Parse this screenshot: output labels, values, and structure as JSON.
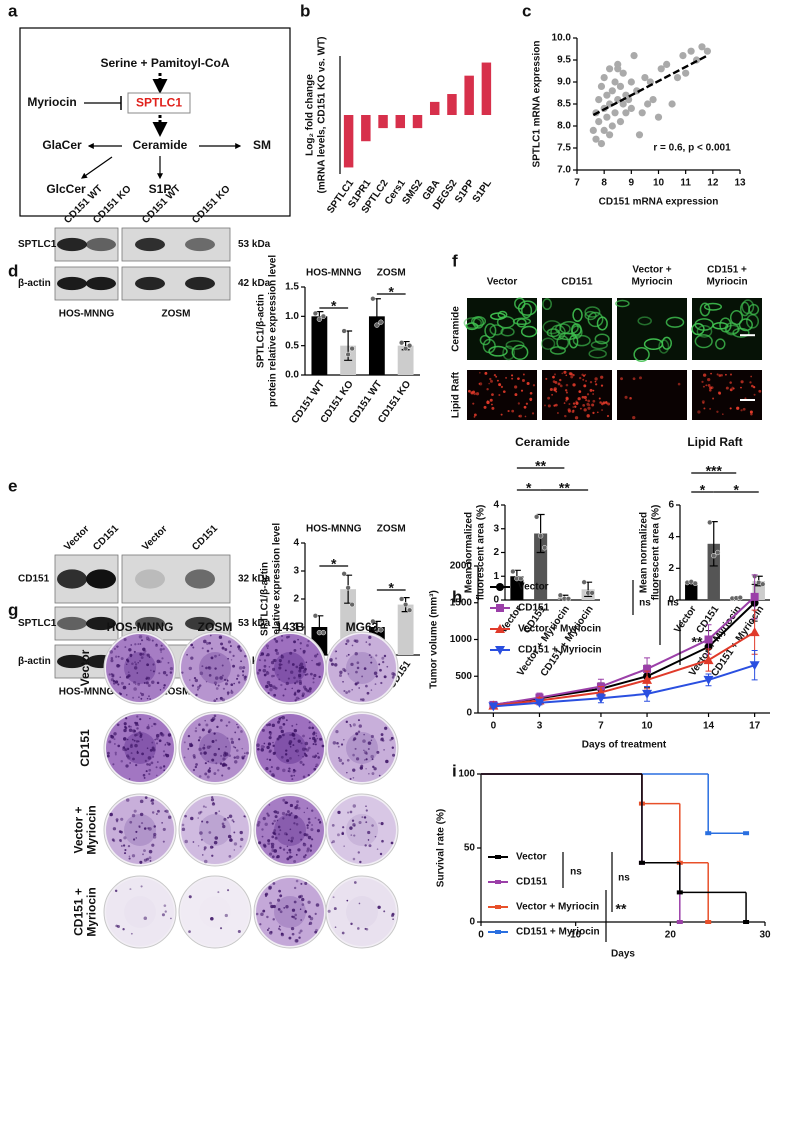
{
  "panel_labels": [
    "a",
    "b",
    "c",
    "d",
    "e",
    "f",
    "g",
    "h",
    "i"
  ],
  "diagram": {
    "nodes": [
      "Serine + Pamitoyl-CoA",
      "SPTLC1",
      "Myriocin",
      "GlaCer",
      "Ceramide",
      "SM",
      "GlcCer",
      "S1P"
    ]
  },
  "blots": [
    {
      "lanes": [
        "CD151 WT",
        "CD151 KO",
        "CD151 WT",
        "CD151 KO"
      ],
      "proteins": [
        "SPTLC1",
        "β-actin"
      ],
      "sizes": [
        "53 kDa",
        "42 kDa"
      ],
      "cell_lines": [
        "HOS-MNNG",
        "ZOSM"
      ]
    },
    {
      "lanes": [
        "Vector",
        "CD151",
        "Vector",
        "CD151"
      ],
      "proteins": [
        "CD151",
        "SPTLC1",
        "β-actin"
      ],
      "sizes": [
        "32 kDa",
        "53 kDa",
        "42 kDa"
      ],
      "cell_lines": [
        "HOS-MNNG",
        "ZOSM"
      ]
    }
  ],
  "micrographs": {
    "columns": [
      [
        "Vector"
      ],
      [
        "CD151"
      ],
      [
        "Vector +",
        "Myriocin"
      ],
      [
        "CD151 +",
        "Myriocin"
      ]
    ],
    "rows": [
      "Ceramide",
      "Lipid Raft"
    ]
  },
  "colony_plates": {
    "columns": [
      "HOS-MNNG",
      "ZOSM",
      "143B",
      "MG63"
    ],
    "rows": [
      [
        "Vector"
      ],
      [
        "CD151"
      ],
      [
        "Vector +",
        "Myriocin"
      ],
      [
        "CD151 +",
        "Myriocin"
      ]
    ]
  },
  "chart_data": [
    {
      "type": "bar",
      "ylabel": [
        "Log₂ fold change",
        "(mRNA levels, CD151 KO vs. WT)"
      ],
      "categories": [
        "SPTLC1",
        "S1PR1",
        "SPTLC2",
        "Cers1",
        "SMS2",
        "GBA",
        "DEGS2",
        "S1PP",
        "S1PL"
      ],
      "values": [
        -4,
        -2,
        -1,
        -1,
        -1,
        1,
        1.6,
        3,
        4
      ],
      "color": "#d7304b",
      "ylim": [
        -4.5,
        4.5
      ]
    },
    {
      "type": "scatter",
      "xlabel": "CD151 mRNA expression",
      "ylabel": "SPTLC1 mRNA expression",
      "annotation": "r = 0.6, p < 0.001",
      "x": [
        7.6,
        7.7,
        7.7,
        7.8,
        7.8,
        7.9,
        7.9,
        8.0,
        8.0,
        8.0,
        8.1,
        8.1,
        8.2,
        8.2,
        8.3,
        8.3,
        8.4,
        8.4,
        8.5,
        8.5,
        8.6,
        8.6,
        8.7,
        8.7,
        8.8,
        8.8,
        8.9,
        9.0,
        9.0,
        9.1,
        9.2,
        9.3,
        9.4,
        9.5,
        9.6,
        9.7,
        9.8,
        10.0,
        10.1,
        10.3,
        10.5,
        10.7,
        10.9,
        11.0,
        11.2,
        11.4,
        11.6,
        11.8,
        8.2,
        8.5
      ],
      "y": [
        7.9,
        8.3,
        7.7,
        8.6,
        8.1,
        8.9,
        7.6,
        8.4,
        9.1,
        7.9,
        8.7,
        8.2,
        9.3,
        8.5,
        8.0,
        8.8,
        9.0,
        8.3,
        8.6,
        9.4,
        8.1,
        8.9,
        8.5,
        9.2,
        8.7,
        8.3,
        8.6,
        9.0,
        8.4,
        9.6,
        8.8,
        7.8,
        8.3,
        9.1,
        8.5,
        9.0,
        8.6,
        8.2,
        9.3,
        9.4,
        8.5,
        9.1,
        9.6,
        9.2,
        9.7,
        9.5,
        9.8,
        9.7,
        7.8,
        9.3
      ],
      "color": "#aaaaaa",
      "fit": {
        "x": [
          7.6,
          11.8
        ],
        "y": [
          8.25,
          9.6
        ],
        "color": "#000000"
      },
      "xlim": [
        7,
        13
      ],
      "xticks": [
        7,
        8,
        9,
        10,
        11,
        12,
        13
      ],
      "ylim": [
        7,
        10
      ],
      "yticks": [
        {
          "value": 7,
          "label": "7.0"
        },
        7.5,
        {
          "value": 8,
          "label": "8.0"
        },
        8.5,
        {
          "value": 9,
          "label": "9.0"
        },
        9.5,
        {
          "value": 10,
          "label": "10.0"
        }
      ]
    },
    {
      "type": "bar",
      "ylabel": [
        "SPTLC1/β-actin",
        "protein relative expression level"
      ],
      "groups": [
        "HOS-MNNG",
        "ZOSM"
      ],
      "categories": [
        "CD151 WT",
        "CD151 KO",
        "CD151 WT",
        "CD151 KO"
      ],
      "values": [
        1,
        0.5,
        1,
        0.5
      ],
      "errors": [
        0.08,
        0.25,
        0.3,
        0.07
      ],
      "points": [
        [
          1.05,
          0.95,
          1.0
        ],
        [
          0.75,
          0.35,
          0.45
        ],
        [
          1.3,
          0.85,
          0.9
        ],
        [
          0.55,
          0.45,
          0.5
        ]
      ],
      "colors": [
        "#000000",
        "#cccccc",
        "#000000",
        "#cccccc"
      ],
      "annotations": [
        "*",
        "*"
      ],
      "ylim": [
        0,
        1.5
      ],
      "yticks": [
        {
          "value": 0,
          "label": "0.0"
        },
        0.5,
        {
          "value": 1,
          "label": "1.0"
        },
        1.5
      ]
    },
    {
      "type": "bar",
      "ylabel": [
        "SPTLC1/β-actin",
        "protein relative expression level"
      ],
      "groups": [
        "HOS-MNNG",
        "ZOSM"
      ],
      "categories": [
        "Vector",
        "CD151",
        "Vector",
        "CD151"
      ],
      "values": [
        1,
        2.35,
        1,
        1.8
      ],
      "errors": [
        0.4,
        0.5,
        0.2,
        0.25
      ],
      "points": [
        [
          1.4,
          0.8,
          0.8
        ],
        [
          2.9,
          2.4,
          1.8
        ],
        [
          1.2,
          0.9,
          0.9
        ],
        [
          2.0,
          1.8,
          1.6
        ]
      ],
      "colors": [
        "#000000",
        "#cccccc",
        "#000000",
        "#cccccc"
      ],
      "annotations": [
        "*",
        "*"
      ],
      "ylim": [
        0,
        4
      ],
      "yticks": [
        0,
        1,
        2,
        3,
        4
      ]
    },
    {
      "type": "bar",
      "title": "Ceramide",
      "ylabel": [
        "Mean normalized",
        "fluorescent area (%)"
      ],
      "categories": [
        "Vector",
        "CD151",
        "Vector + Myriocin",
        "CD151 + Myriocin"
      ],
      "values": [
        1,
        2.8,
        0.1,
        0.45
      ],
      "errors": [
        0.25,
        0.8,
        0.1,
        0.3
      ],
      "points": [
        [
          1.2,
          0.9,
          0.9
        ],
        [
          3.5,
          2.7,
          2.2
        ],
        [
          0.2,
          0.05,
          0.05
        ],
        [
          0.75,
          0.3,
          0.3
        ]
      ],
      "colors": [
        "#000000",
        "#555555",
        "#999999",
        "#cccccc"
      ],
      "annotations": [
        "**",
        "*",
        "**"
      ],
      "ylim": [
        0,
        4
      ],
      "yticks": [
        0,
        1,
        2,
        3,
        4
      ]
    },
    {
      "type": "bar",
      "title": "Lipid Raft",
      "ylabel": [
        "Mean normalized",
        "fluorescent area (%)"
      ],
      "categories": [
        "Vector",
        "CD151",
        "Vector + Myriocin",
        "CD151 + Myriocin"
      ],
      "values": [
        1.1,
        3.55,
        0.12,
        1.2
      ],
      "errors": [
        0.05,
        1.4,
        0.05,
        0.3
      ],
      "points": [
        [
          1.1,
          1.15,
          1.05
        ],
        [
          4.9,
          2.8,
          3.0
        ],
        [
          0.1,
          0.12,
          0.15
        ],
        [
          1.5,
          1.1,
          1.0
        ]
      ],
      "colors": [
        "#000000",
        "#555555",
        "#999999",
        "#cccccc"
      ],
      "annotations": [
        "***",
        "*",
        "*"
      ],
      "ylim": [
        0,
        6
      ],
      "yticks": [
        0,
        2,
        4,
        6
      ]
    },
    {
      "type": "line",
      "xlabel": "Days of treatment",
      "ylabel": "Tumor volume (mm³)",
      "x": [
        0,
        3,
        7,
        10,
        14,
        17
      ],
      "series": [
        {
          "name": "Vector",
          "color": "#000000",
          "marker": "circle",
          "values": [
            110,
            200,
            330,
            500,
            900,
            1500
          ],
          "errors": [
            20,
            40,
            80,
            150,
            220,
            250
          ]
        },
        {
          "name": "CD151",
          "color": "#9b3fa8",
          "marker": "square",
          "values": [
            110,
            210,
            360,
            600,
            1000,
            1580
          ],
          "errors": [
            20,
            60,
            100,
            150,
            200,
            300
          ]
        },
        {
          "name": "Vector + Myriocin",
          "color": "#e03a2a",
          "marker": "triangle",
          "values": [
            100,
            170,
            280,
            450,
            720,
            1100
          ],
          "errors": [
            20,
            40,
            80,
            120,
            150,
            300
          ]
        },
        {
          "name": "CD151 + Myriocin",
          "color": "#2a4fe0",
          "marker": "triangle-down",
          "values": [
            90,
            140,
            200,
            260,
            450,
            650
          ],
          "errors": [
            20,
            30,
            60,
            100,
            80,
            200
          ]
        }
      ],
      "annotations": [
        "ns",
        "ns",
        "**"
      ],
      "xlim": [
        -1,
        18
      ],
      "xticks": [
        0,
        3,
        7,
        10,
        14,
        17
      ],
      "ylim": [
        0,
        2000
      ],
      "yticks": [
        0,
        500,
        1000,
        1500,
        2000
      ]
    },
    {
      "type": "step",
      "xlabel": "Days",
      "ylabel": "Survival rate (%)",
      "series": [
        {
          "name": "Vector",
          "color": "#000000",
          "x": [
            0,
            17,
            21,
            28
          ],
          "values": [
            100,
            40,
            20,
            0
          ]
        },
        {
          "name": "CD151",
          "color": "#9b3fa8",
          "x": [
            0,
            17,
            21
          ],
          "values": [
            100,
            40,
            0
          ]
        },
        {
          "name": "Vector + Myriocin",
          "color": "#e8502a",
          "x": [
            0,
            17,
            21,
            24
          ],
          "values": [
            100,
            80,
            40,
            0
          ]
        },
        {
          "name": "CD151 + Myriocin",
          "color": "#2a6fe0",
          "x": [
            0,
            24,
            28
          ],
          "values": [
            100,
            60,
            60
          ]
        }
      ],
      "annotations": [
        "ns",
        "ns",
        "**"
      ],
      "xlim": [
        0,
        30
      ],
      "xticks": [
        0,
        10,
        20,
        30
      ],
      "ylim": [
        0,
        100
      ],
      "yticks": [
        0,
        50,
        100
      ]
    }
  ]
}
